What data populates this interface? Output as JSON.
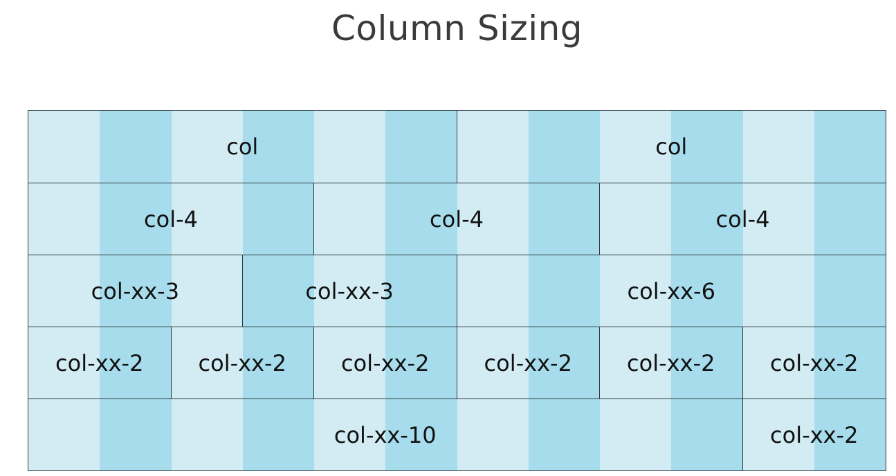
{
  "title": "Column Sizing",
  "grid": {
    "columns": 12,
    "rows": [
      {
        "cells": [
          {
            "label": "col",
            "span": 6
          },
          {
            "label": "col",
            "span": 6
          }
        ]
      },
      {
        "cells": [
          {
            "label": "col-4",
            "span": 4
          },
          {
            "label": "col-4",
            "span": 4
          },
          {
            "label": "col-4",
            "span": 4
          }
        ]
      },
      {
        "cells": [
          {
            "label": "col-xx-3",
            "span": 3
          },
          {
            "label": "col-xx-3",
            "span": 3
          },
          {
            "label": "col-xx-6",
            "span": 6
          }
        ]
      },
      {
        "cells": [
          {
            "label": "col-xx-2",
            "span": 2
          },
          {
            "label": "col-xx-2",
            "span": 2
          },
          {
            "label": "col-xx-2",
            "span": 2
          },
          {
            "label": "col-xx-2",
            "span": 2
          },
          {
            "label": "col-xx-2",
            "span": 2
          },
          {
            "label": "col-xx-2",
            "span": 2
          }
        ]
      },
      {
        "cells": [
          {
            "label": "col-xx-10",
            "span": 10
          },
          {
            "label": "col-xx-2",
            "span": 2
          }
        ]
      }
    ]
  },
  "colors": {
    "stripe_light": "#d3ecf4",
    "stripe_dark": "#a6dceb",
    "border": "#2b3a40"
  }
}
